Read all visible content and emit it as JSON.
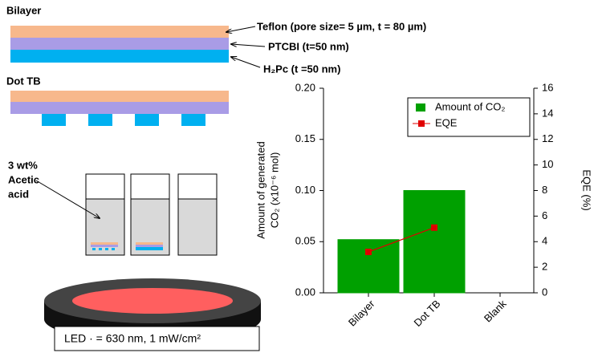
{
  "chart_data": {
    "type": "bar",
    "categories": [
      "Bilayer",
      "Dot TB",
      "Blank"
    ],
    "series": [
      {
        "name": "Amount of CO₂",
        "color": "#00a000",
        "values": [
          0.052,
          0.1,
          0
        ]
      },
      {
        "name": "EQE",
        "color": "#e00000",
        "type": "line",
        "axis": "y2",
        "values": [
          3.2,
          5.1,
          null
        ]
      }
    ],
    "ylim": [
      0,
      0.2
    ],
    "yticks": [
      {
        "value": 0,
        "label": "0.00"
      },
      {
        "value": 0.05,
        "label": "0.05"
      },
      {
        "value": 0.1,
        "label": "0.10"
      },
      {
        "value": 0.15,
        "label": "0.15"
      },
      {
        "value": 0.2,
        "label": "0.20"
      }
    ],
    "y2lim": [
      0,
      16
    ],
    "y2ticks": [
      0,
      2,
      4,
      6,
      8,
      10,
      12,
      14,
      16
    ],
    "ylabel": [
      "Amount of generated",
      "CO₂ (x10⁻⁶ mol)"
    ],
    "y2label": "EQE (%)",
    "legend": "upper right"
  },
  "diagram": {
    "bilayer_title": "Bilayer",
    "teflon": "Teflon (pore size= 5 µm, t = 80 µm)",
    "ptcbi": "PTCBI (t=50 nm)",
    "h2pc": "H₂Pc (t =50 nm)",
    "dot_title": "Dot TB",
    "acid": [
      "3 wt%",
      "Acetic",
      "acid"
    ],
    "led": "LED · = 630 nm, 1 mW/cm²"
  }
}
